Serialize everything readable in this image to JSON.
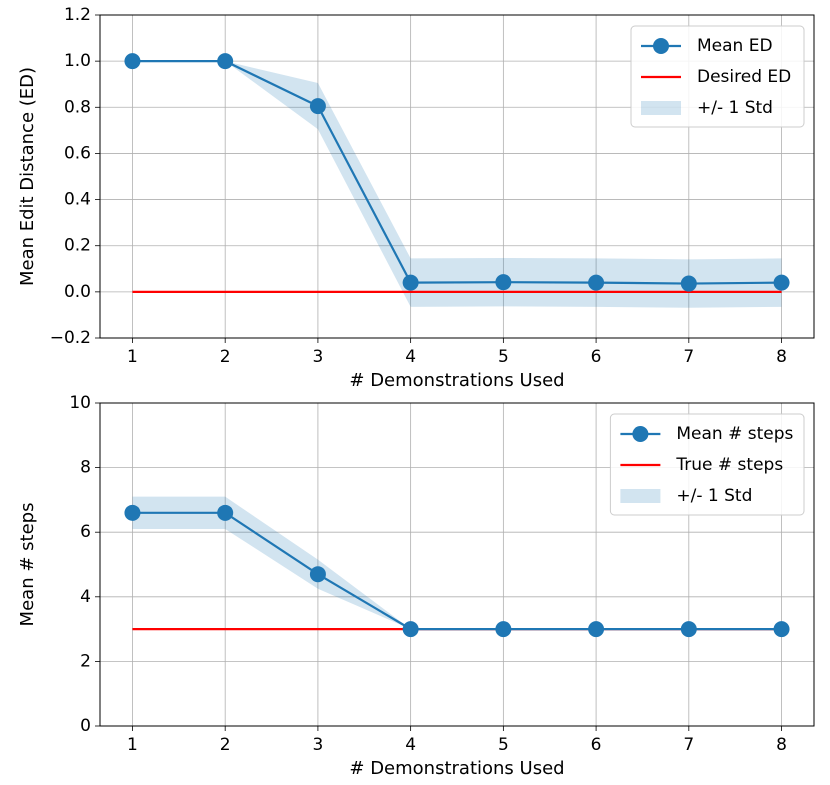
{
  "chart_data": [
    {
      "type": "line",
      "ylabel": "Mean Edit Distance (ED)",
      "xlabel": "# Demonstrations Used",
      "x": [
        1,
        2,
        3,
        4,
        5,
        6,
        7,
        8
      ],
      "series": [
        {
          "name": "Mean ED",
          "color": "#1f77b4",
          "style": "line-markers",
          "values": [
            1.0,
            1.0,
            0.805,
            0.04,
            0.042,
            0.04,
            0.036,
            0.04
          ]
        },
        {
          "name": "Desired ED",
          "color": "#ff0000",
          "style": "line",
          "values": [
            0,
            0,
            0,
            0,
            0,
            0,
            0,
            0
          ]
        },
        {
          "name": "+/- 1 Std",
          "color": "#1f77b4",
          "alpha": 0.2,
          "style": "band",
          "values": [
            0,
            0,
            0.1,
            0.105,
            0.105,
            0.105,
            0.105,
            0.105
          ]
        }
      ],
      "xlim": [
        0.65,
        8.35
      ],
      "xticks": [
        1,
        2,
        3,
        4,
        5,
        6,
        7,
        8
      ],
      "ylim": [
        -0.2,
        1.2
      ],
      "yticks": [
        {
          "value": -0.2,
          "label": "−0.2"
        },
        {
          "value": 0,
          "label": "0.0"
        },
        0.2,
        0.4,
        0.6,
        0.8,
        {
          "value": 1.0,
          "label": "1.0"
        },
        1.2
      ],
      "grid": true,
      "legend": "upper right"
    },
    {
      "type": "line",
      "ylabel": "Mean # steps",
      "xlabel": "# Demonstrations Used",
      "x": [
        1,
        2,
        3,
        4,
        5,
        6,
        7,
        8
      ],
      "series": [
        {
          "name": "Mean # steps",
          "color": "#1f77b4",
          "style": "line-markers",
          "values": [
            6.6,
            6.6,
            4.7,
            3,
            3,
            3,
            3,
            3
          ]
        },
        {
          "name": "True # steps",
          "color": "#ff0000",
          "style": "line",
          "values": [
            3,
            3,
            3,
            3,
            3,
            3,
            3,
            3
          ]
        },
        {
          "name": "+/- 1 Std",
          "color": "#1f77b4",
          "alpha": 0.2,
          "style": "band",
          "values": [
            0.5,
            0.5,
            0.45,
            0,
            0,
            0,
            0,
            0
          ]
        }
      ],
      "xlim": [
        0.65,
        8.35
      ],
      "xticks": [
        1,
        2,
        3,
        4,
        5,
        6,
        7,
        8
      ],
      "ylim": [
        0,
        10
      ],
      "yticks": [
        0,
        2,
        4,
        6,
        8,
        10
      ],
      "grid": true,
      "legend": "upper right"
    }
  ]
}
